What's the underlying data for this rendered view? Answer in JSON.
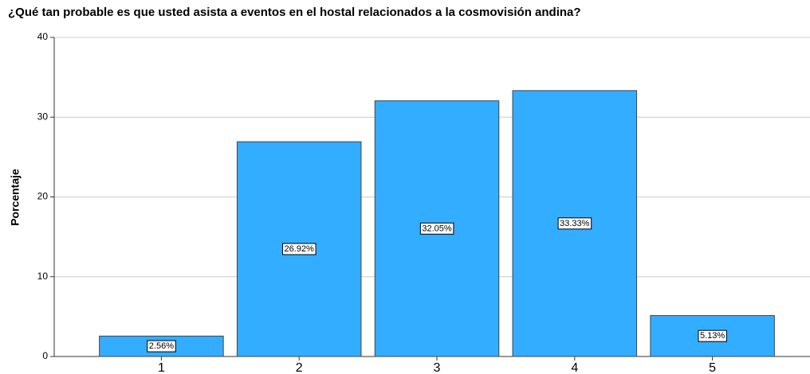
{
  "chart_data": {
    "type": "bar",
    "title": "¿Qué tan probable es que usted asista a eventos en el hostal relacionados a la cosmovisión andina?",
    "y_label": "Porcentaje",
    "categories": [
      "1",
      "2",
      "3",
      "4",
      "5"
    ],
    "values": [
      2.56,
      26.92,
      32.05,
      33.33,
      5.13
    ],
    "value_labels": [
      "2.56%",
      "26.92%",
      "32.05%",
      "33.33%",
      "5.13%"
    ],
    "color": "#33adff",
    "ylim": [
      0,
      40
    ],
    "yticks": [
      0,
      10,
      20,
      30,
      40
    ],
    "grid": true
  }
}
